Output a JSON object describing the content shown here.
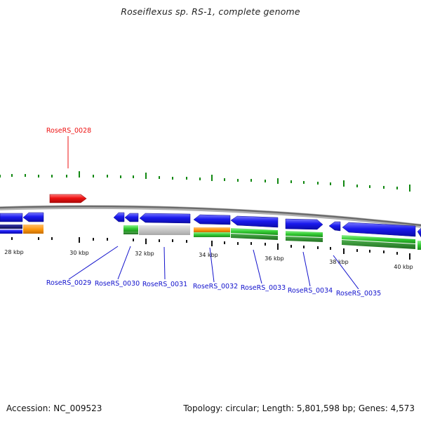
{
  "title": "Roseiflexus sp. RS-1, complete genome",
  "footer": {
    "accession": "Accession: NC_009523",
    "stats": "Topology: circular; Length: 5,801,598 bp; Genes: 4,573"
  },
  "colors": {
    "highlight": "#ee1111",
    "gene_label": "#1111cc",
    "cds": "#1a1aee",
    "backbone": "#7a7a7a",
    "tick": "#118811"
  },
  "scale_labels": [
    "28 kbp",
    "30 kbp",
    "32 kbp",
    "34 kbp",
    "36 kbp",
    "38 kbp",
    "40 kbp"
  ],
  "genes": {
    "highlighted": "RoseRS_0028",
    "labels": [
      "RoseRS_0029",
      "RoseRS_0030",
      "RoseRS_0031",
      "RoseRS_0032",
      "RoseRS_0033",
      "RoseRS_0034",
      "RoseRS_0035"
    ]
  }
}
